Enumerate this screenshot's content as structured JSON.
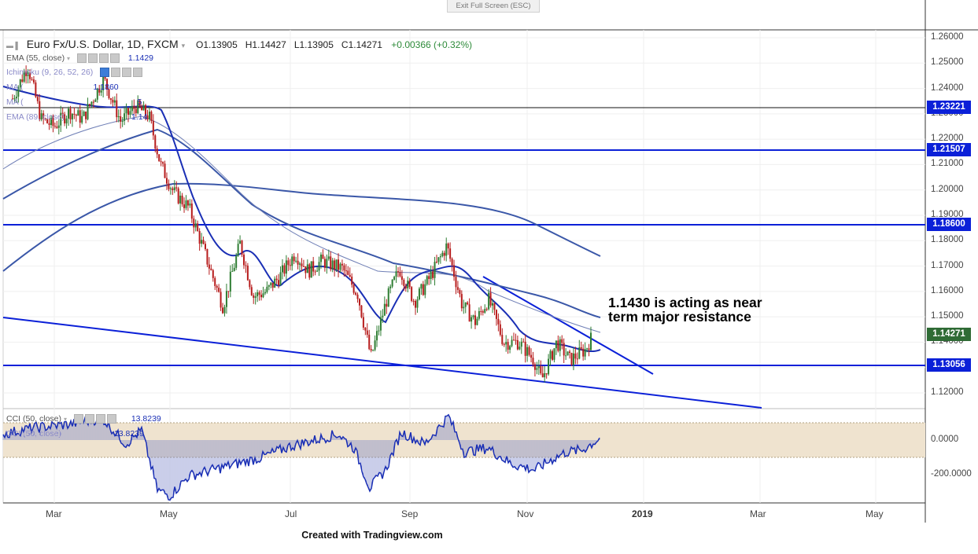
{
  "chrome": {
    "exit_fullscreen": "Exit Full Screen (ESC)",
    "footer": "Created with Tradingview.com"
  },
  "legend": {
    "symbol": "Euro Fx/U.S. Dollar, 1D, FXCM",
    "open": "O1.13905",
    "high": "H1.14427",
    "low": "L1.13905",
    "close": "C1.14271",
    "change": "+0.00366 (+0.32%)",
    "ema55_label": "EMA (55, close)",
    "ema55_value": "1.1429",
    "ichimoku_label": "Ichimoku (9, 26, 52, 26)",
    "ma_label": "MA (",
    "ma_value": "1.1860",
    "ma2_label": "MA (",
    "ma2_value": "5",
    "ema89_label": "EMA (89, close)",
    "ema89_value": "1.14"
  },
  "annotation": {
    "line1": "1.1430 is acting as near",
    "line2": "term major resistance"
  },
  "price_axis": {
    "labels": [
      "1.26000",
      "1.25000",
      "1.24000",
      "1.23000",
      "1.22000",
      "1.21000",
      "1.20000",
      "1.19000",
      "1.18000",
      "1.17000",
      "1.16000",
      "1.15000",
      "1.14000",
      "1.13000",
      "1.12000"
    ]
  },
  "price_badges": {
    "r1": "1.23221",
    "r2": "1.21507",
    "r3": "1.18600",
    "last": "1.14271",
    "s1": "1.13056"
  },
  "cci": {
    "label": "CCI (50, close)",
    "value": "13.8239",
    "label2": "CCI (50, close)",
    "value2": "13.8239",
    "axis_labels": [
      "0.0000",
      "-200.0000"
    ]
  },
  "time_axis": {
    "labels": [
      "Mar",
      "May",
      "Jul",
      "Sep",
      "Nov",
      "2019",
      "Mar",
      "May"
    ]
  },
  "colors": {
    "up_candle": "#2e7d32",
    "down_candle": "#b71c1c",
    "ema": "#1a2fb5",
    "level_line": "#0b20d8",
    "cci_band": "#efe3cf"
  },
  "chart_data": {
    "type": "candlestick",
    "symbol": "Euro Fx/U.S. Dollar",
    "timeframe": "1D",
    "price_range": [
      1.11,
      1.265
    ],
    "horizontal_levels": [
      1.23221,
      1.21507,
      1.186,
      1.13056
    ],
    "last_price": 1.14271,
    "close_series": [
      {
        "date": "2018-02-07",
        "close": 1.236
      },
      {
        "date": "2018-02-15",
        "close": 1.249
      },
      {
        "date": "2018-02-22",
        "close": 1.228
      },
      {
        "date": "2018-03-01",
        "close": 1.225
      },
      {
        "date": "2018-03-09",
        "close": 1.231
      },
      {
        "date": "2018-03-16",
        "close": 1.228
      },
      {
        "date": "2018-03-27",
        "close": 1.244
      },
      {
        "date": "2018-04-05",
        "close": 1.227
      },
      {
        "date": "2018-04-13",
        "close": 1.233
      },
      {
        "date": "2018-04-20",
        "close": 1.229
      },
      {
        "date": "2018-04-26",
        "close": 1.21
      },
      {
        "date": "2018-05-03",
        "close": 1.199
      },
      {
        "date": "2018-05-11",
        "close": 1.193
      },
      {
        "date": "2018-05-18",
        "close": 1.178
      },
      {
        "date": "2018-05-29",
        "close": 1.154
      },
      {
        "date": "2018-06-07",
        "close": 1.179
      },
      {
        "date": "2018-06-14",
        "close": 1.158
      },
      {
        "date": "2018-06-21",
        "close": 1.16
      },
      {
        "date": "2018-06-28",
        "close": 1.166
      },
      {
        "date": "2018-07-06",
        "close": 1.175
      },
      {
        "date": "2018-07-13",
        "close": 1.168
      },
      {
        "date": "2018-07-20",
        "close": 1.172
      },
      {
        "date": "2018-07-31",
        "close": 1.169
      },
      {
        "date": "2018-08-08",
        "close": 1.159
      },
      {
        "date": "2018-08-15",
        "close": 1.134
      },
      {
        "date": "2018-08-23",
        "close": 1.156
      },
      {
        "date": "2018-08-30",
        "close": 1.169
      },
      {
        "date": "2018-09-07",
        "close": 1.156
      },
      {
        "date": "2018-09-14",
        "close": 1.164
      },
      {
        "date": "2018-09-24",
        "close": 1.178
      },
      {
        "date": "2018-10-02",
        "close": 1.155
      },
      {
        "date": "2018-10-09",
        "close": 1.148
      },
      {
        "date": "2018-10-16",
        "close": 1.157
      },
      {
        "date": "2018-10-24",
        "close": 1.14
      },
      {
        "date": "2018-11-01",
        "close": 1.14
      },
      {
        "date": "2018-11-09",
        "close": 1.133
      },
      {
        "date": "2018-11-13",
        "close": 1.125
      },
      {
        "date": "2018-11-21",
        "close": 1.14
      },
      {
        "date": "2018-11-28",
        "close": 1.133
      },
      {
        "date": "2018-12-06",
        "close": 1.137
      },
      {
        "date": "2018-12-10",
        "close": 1.1427
      }
    ],
    "cci_range": [
      -300,
      150
    ]
  }
}
